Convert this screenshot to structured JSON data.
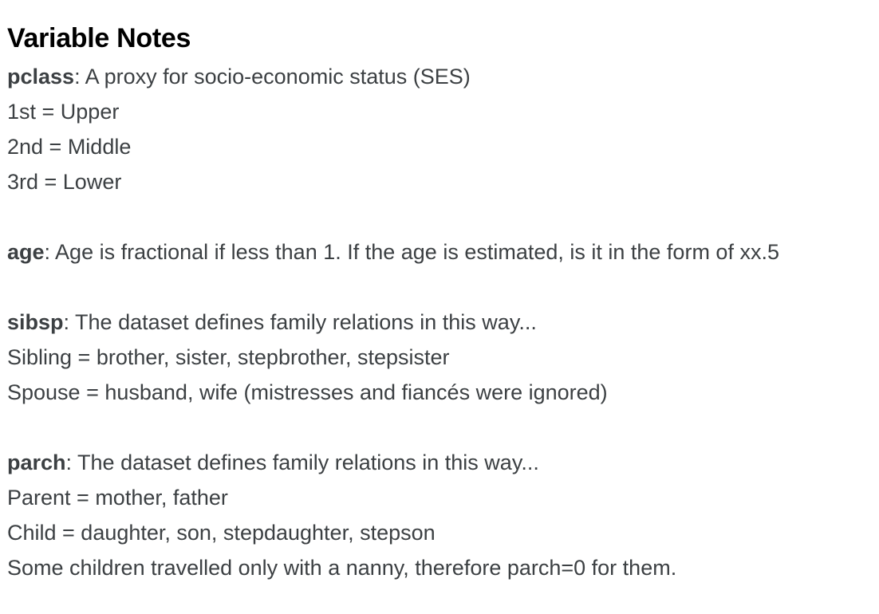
{
  "title": "Variable Notes",
  "notes": [
    {
      "term": "pclass",
      "description": ": A proxy for socio-economic status (SES)",
      "lines": [
        "1st = Upper",
        "2nd = Middle",
        "3rd = Lower"
      ]
    },
    {
      "term": "age",
      "description": ": Age is fractional if less than 1. If the age is estimated, is it in the form of xx.5",
      "lines": []
    },
    {
      "term": "sibsp",
      "description": ": The dataset defines family relations in this way...",
      "lines": [
        "Sibling = brother, sister, stepbrother, stepsister",
        "Spouse = husband, wife (mistresses and fiancés were ignored)"
      ]
    },
    {
      "term": "parch",
      "description": ": The dataset defines family relations in this way...",
      "lines": [
        "Parent = mother, father",
        "Child = daughter, son, stepdaughter, stepson",
        "Some children travelled only with a nanny, therefore parch=0 for them."
      ]
    }
  ]
}
